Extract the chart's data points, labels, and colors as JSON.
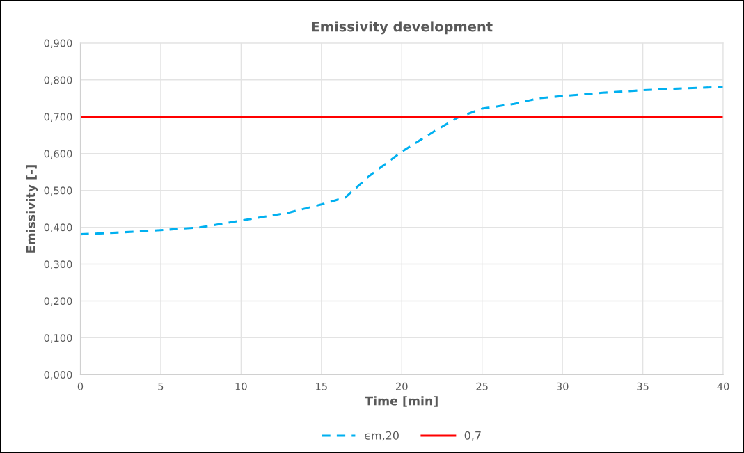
{
  "chart_data": {
    "type": "line",
    "title": "Emissivity development",
    "xlabel": "Time [min]",
    "ylabel": "Emissivity [-]",
    "series": [
      {
        "name": "ϵm,20",
        "color": "#00b0f0",
        "line_style": "dashed",
        "x": [
          0,
          2.5,
          5,
          7.5,
          10,
          13,
          15,
          16.5,
          18,
          20,
          22,
          23.5,
          25,
          27,
          28.5,
          30,
          32.5,
          35,
          37.5,
          40
        ],
        "values": [
          0.381,
          0.386,
          0.392,
          0.4,
          0.418,
          0.44,
          0.462,
          0.481,
          0.54,
          0.605,
          0.66,
          0.698,
          0.722,
          0.735,
          0.75,
          0.756,
          0.765,
          0.772,
          0.777,
          0.781
        ]
      },
      {
        "name": "0,7",
        "color": "#ff0000",
        "line_style": "solid",
        "x": [
          0,
          40
        ],
        "values": [
          0.7,
          0.7
        ]
      }
    ],
    "xlim": [
      0,
      40
    ],
    "xticks": [
      0,
      5,
      10,
      15,
      20,
      25,
      30,
      35,
      40
    ],
    "ylim": [
      0,
      0.9
    ],
    "yticks": [
      {
        "value": 0,
        "label": "0,000"
      },
      {
        "value": 0.1,
        "label": "0,100"
      },
      {
        "value": 0.2,
        "label": "0,200"
      },
      {
        "value": 0.3,
        "label": "0,300"
      },
      {
        "value": 0.4,
        "label": "0,400"
      },
      {
        "value": 0.5,
        "label": "0,500"
      },
      {
        "value": 0.6,
        "label": "0,600"
      },
      {
        "value": 0.7,
        "label": "0,700"
      },
      {
        "value": 0.8,
        "label": "0,800"
      },
      {
        "value": 0.9,
        "label": "0,900"
      }
    ],
    "grid": true,
    "legend": "bottom",
    "marker": "none"
  }
}
